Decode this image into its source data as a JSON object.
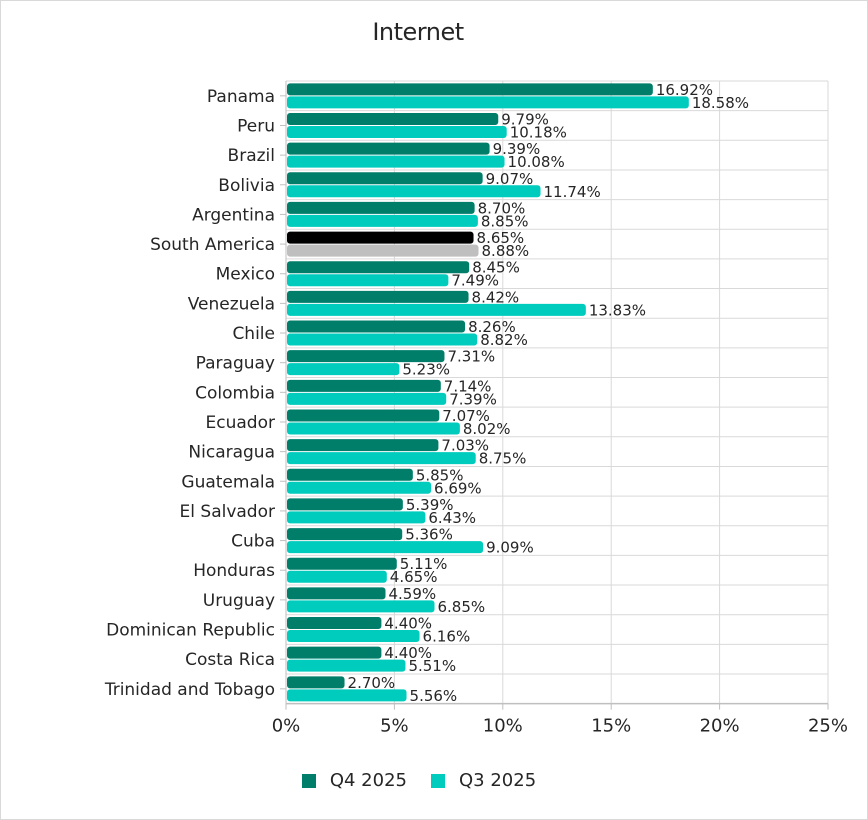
{
  "chart_data": {
    "type": "bar",
    "orientation": "horizontal",
    "title": "Internet",
    "xlabel": "",
    "ylabel": "",
    "xlim": [
      0,
      25
    ],
    "x_ticks": [
      "0%",
      "5%",
      "10%",
      "15%",
      "20%",
      "25%"
    ],
    "x_tick_values": [
      0,
      5,
      10,
      15,
      20,
      25
    ],
    "grid": true,
    "legend_position": "bottom",
    "categories": [
      "Panama",
      "Peru",
      "Brazil",
      "Bolivia",
      "Argentina",
      "South America",
      "Mexico",
      "Venezuela",
      "Chile",
      "Paraguay",
      "Colombia",
      "Ecuador",
      "Nicaragua",
      "Guatemala",
      "El Salvador",
      "Cuba",
      "Honduras",
      "Uruguay",
      "Dominican Republic",
      "Costa Rica",
      "Trinidad and Tobago"
    ],
    "series": [
      {
        "name": "Q4 2025",
        "color": "#007E6A",
        "values": [
          16.92,
          9.79,
          9.39,
          9.07,
          8.7,
          8.65,
          8.45,
          8.42,
          8.26,
          7.31,
          7.14,
          7.07,
          7.03,
          5.85,
          5.39,
          5.36,
          5.11,
          4.59,
          4.4,
          4.4,
          2.7
        ],
        "labels": [
          "16.92%",
          "9.79%",
          "9.39%",
          "9.07%",
          "8.70%",
          "8.65%",
          "8.45%",
          "8.42%",
          "8.26%",
          "7.31%",
          "7.14%",
          "7.07%",
          "7.03%",
          "5.85%",
          "5.39%",
          "5.36%",
          "5.11%",
          "4.59%",
          "4.40%",
          "4.40%",
          "2.70%"
        ]
      },
      {
        "name": "Q3 2025",
        "color": "#00CCBE",
        "values": [
          18.58,
          10.18,
          10.08,
          11.74,
          8.85,
          8.88,
          7.49,
          13.83,
          8.82,
          5.23,
          7.39,
          8.02,
          8.75,
          6.69,
          6.43,
          9.09,
          4.65,
          6.85,
          6.16,
          5.51,
          5.56
        ],
        "labels": [
          "18.58%",
          "10.18%",
          "10.08%",
          "11.74%",
          "8.85%",
          "8.88%",
          "7.49%",
          "13.83%",
          "8.82%",
          "5.23%",
          "7.39%",
          "8.02%",
          "8.75%",
          "6.69%",
          "6.43%",
          "9.09%",
          "4.65%",
          "6.85%",
          "6.16%",
          "5.51%",
          "5.56%"
        ]
      }
    ],
    "highlight": {
      "category": "South America",
      "colors": [
        "#000000",
        "#BFBFBF"
      ]
    }
  }
}
